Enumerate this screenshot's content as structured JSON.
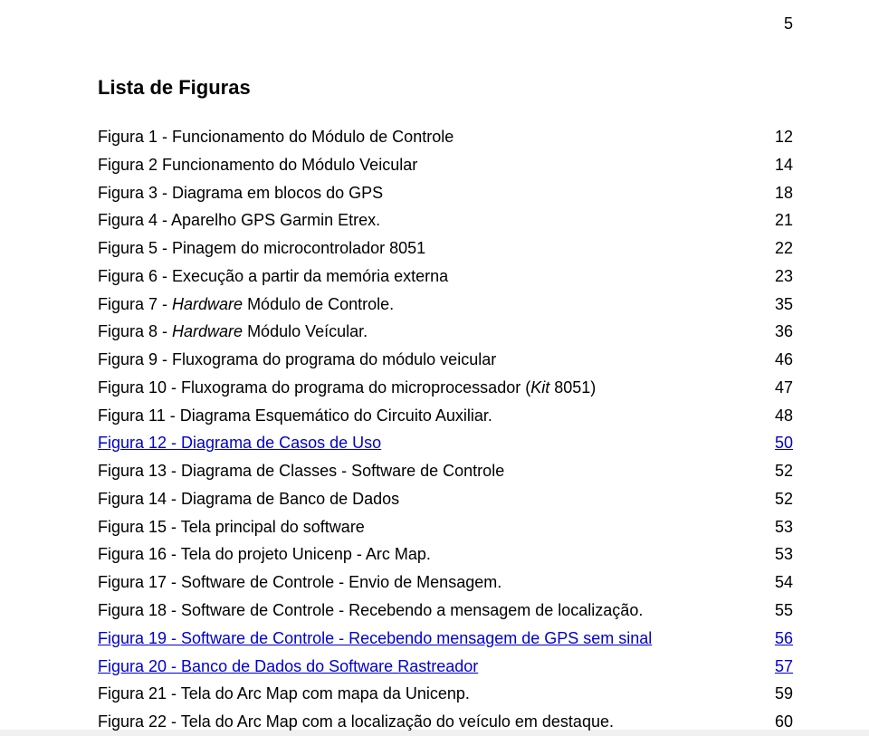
{
  "page_number": "5",
  "title": "Lista de Figuras",
  "entries": [
    {
      "label_plain": "Figura 1 - Funcionamento do Módulo de Controle",
      "label_italic": null,
      "label_tail": null,
      "page": "12",
      "link": false
    },
    {
      "label_plain": "Figura 2 Funcionamento do Módulo Veicular",
      "label_italic": null,
      "label_tail": null,
      "page": "14",
      "link": false
    },
    {
      "label_plain": "Figura 3 - Diagrama em blocos do GPS",
      "label_italic": null,
      "label_tail": null,
      "page": "18",
      "link": false
    },
    {
      "label_plain": "Figura 4 - Aparelho GPS Garmin Etrex.",
      "label_italic": null,
      "label_tail": null,
      "page": "21",
      "link": false
    },
    {
      "label_plain": "Figura 5 - Pinagem do microcontrolador 8051",
      "label_italic": null,
      "label_tail": null,
      "page": "22",
      "link": false
    },
    {
      "label_plain": "Figura 6 - Execução a partir da memória externa",
      "label_italic": null,
      "label_tail": null,
      "page": "23",
      "link": false
    },
    {
      "label_plain": "Figura 7 - ",
      "label_italic": "Hardware",
      "label_tail": " Módulo de Controle.",
      "page": "35",
      "link": false
    },
    {
      "label_plain": "Figura 8 - ",
      "label_italic": "Hardware",
      "label_tail": " Módulo Veícular.",
      "page": "36",
      "link": false
    },
    {
      "label_plain": "Figura 9 - Fluxograma do programa do módulo veicular",
      "label_italic": null,
      "label_tail": null,
      "page": "46",
      "link": false
    },
    {
      "label_plain": "Figura 10 - Fluxograma do programa do microprocessador (",
      "label_italic": "Kit",
      "label_tail": " 8051)",
      "page": "47",
      "link": false
    },
    {
      "label_plain": "Figura 11 - Diagrama Esquemático do Circuito Auxiliar.",
      "label_italic": null,
      "label_tail": null,
      "page": "48",
      "link": false
    },
    {
      "label_plain": "Figura 12 - Diagrama de Casos de Uso",
      "label_italic": null,
      "label_tail": null,
      "page": "50",
      "link": true
    },
    {
      "label_plain": "Figura 13 - Diagrama de Classes - Software de Controle",
      "label_italic": null,
      "label_tail": null,
      "page": "52",
      "link": false
    },
    {
      "label_plain": "Figura 14 - Diagrama de Banco de Dados",
      "label_italic": null,
      "label_tail": null,
      "page": "52",
      "link": false
    },
    {
      "label_plain": "Figura 15 - Tela principal do software",
      "label_italic": null,
      "label_tail": null,
      "page": "53",
      "link": false
    },
    {
      "label_plain": "Figura 16 - Tela do projeto Unicenp - Arc Map.",
      "label_italic": null,
      "label_tail": null,
      "page": "53",
      "link": false
    },
    {
      "label_plain": "Figura 17 - Software de Controle - Envio de Mensagem.",
      "label_italic": null,
      "label_tail": null,
      "page": "54",
      "link": false
    },
    {
      "label_plain": "Figura 18 - Software de Controle - Recebendo a mensagem de localização.",
      "label_italic": null,
      "label_tail": null,
      "page": "55",
      "link": false
    },
    {
      "label_plain": "Figura 19 - Software de Controle - Recebendo mensagem de GPS sem sinal",
      "label_italic": null,
      "label_tail": null,
      "page": "56",
      "link": true
    },
    {
      "label_plain": "Figura 20 - Banco de Dados do Software Rastreador",
      "label_italic": null,
      "label_tail": null,
      "page": "57",
      "link": true
    },
    {
      "label_plain": "Figura 21 - Tela do Arc Map com mapa da Unicenp.",
      "label_italic": null,
      "label_tail": null,
      "page": "59",
      "link": false
    },
    {
      "label_plain": "Figura 22 - Tela do Arc Map com a localização do veículo em destaque.",
      "label_italic": null,
      "label_tail": null,
      "page": "60",
      "link": false
    }
  ]
}
